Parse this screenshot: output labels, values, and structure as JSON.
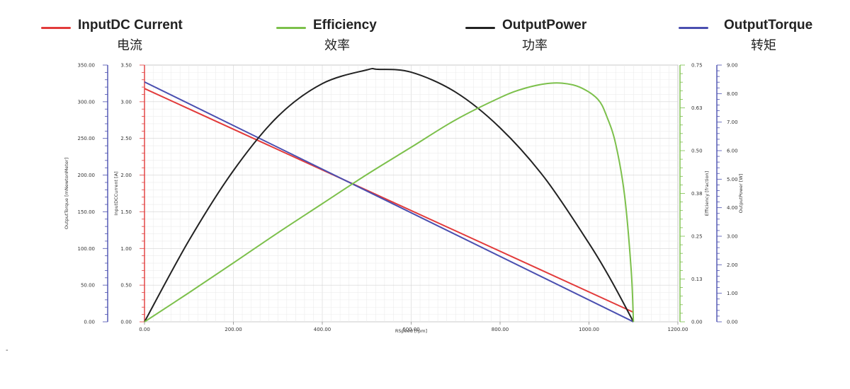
{
  "legend": {
    "input_current": {
      "en": "InputDC Current",
      "zh": "电流",
      "color": "#e23a3a"
    },
    "efficiency": {
      "en": "Efficiency",
      "zh": "效率",
      "color": "#7cc04b"
    },
    "output_power": {
      "en": "OutputPower",
      "zh": "功率",
      "color": "#222222"
    },
    "output_torque": {
      "en": "OutputTorque",
      "zh": "转矩",
      "color": "#4a4fb0"
    }
  },
  "chart_data": {
    "type": "line",
    "xlabel": "RSpeed [rpm]",
    "xlim": [
      0,
      1200
    ],
    "x_ticks": [
      "0.00",
      "200.00",
      "400.00",
      "600.00",
      "800.00",
      "1000.00",
      "1200.00"
    ],
    "grid": true,
    "axes": {
      "torque": {
        "label": "OutputTorque [mNewtonMeter]",
        "ylim": [
          0,
          350
        ],
        "ticks": [
          "0.00",
          "50.00",
          "100.00",
          "150.00",
          "200.00",
          "250.00",
          "300.00",
          "350.00"
        ],
        "color": "#4a4fb0"
      },
      "current": {
        "label": "InputDCCurrent [A]",
        "ylim": [
          0,
          3.5
        ],
        "ticks": [
          "0.00",
          "0.50",
          "1.00",
          "1.50",
          "2.00",
          "2.50",
          "3.00",
          "3.50"
        ],
        "color": "#e23a3a"
      },
      "efficiency": {
        "label": "Efficiency [fraction]",
        "ylim": [
          0,
          0.75
        ],
        "ticks": [
          "0.00",
          "0.13",
          "0.25",
          "0.38",
          "0.50",
          "0.63",
          "0.75"
        ],
        "color": "#7cc04b"
      },
      "power": {
        "label": "OutputPower [W]",
        "ylim": [
          0,
          9
        ],
        "ticks": [
          "0.00",
          "1.00",
          "2.00",
          "3.00",
          "4.00",
          "5.00",
          "6.00",
          "7.00",
          "8.00",
          "9.00"
        ],
        "color": "#4a4fb0"
      }
    },
    "series": [
      {
        "name": "InputDC Current",
        "axis": "current",
        "color": "#e23a3a",
        "x": [
          0,
          1100
        ],
        "y": [
          3.18,
          0.13
        ]
      },
      {
        "name": "OutputTorque",
        "axis": "torque",
        "color": "#4a4fb0",
        "x": [
          0,
          1100
        ],
        "y": [
          327,
          0
        ]
      },
      {
        "name": "OutputPower",
        "axis": "power",
        "color": "#222222",
        "x": [
          0,
          100,
          200,
          300,
          400,
          500,
          525,
          600,
          700,
          800,
          900,
          1000,
          1050,
          1100
        ],
        "y": [
          0,
          2.85,
          5.3,
          7.2,
          8.35,
          8.83,
          8.85,
          8.75,
          8.05,
          6.8,
          5.05,
          2.75,
          1.45,
          0
        ]
      },
      {
        "name": "Efficiency",
        "axis": "efficiency",
        "color": "#7cc04b",
        "x": [
          0,
          100,
          200,
          300,
          400,
          500,
          600,
          700,
          800,
          850,
          900,
          940,
          980,
          1020,
          1040,
          1060,
          1080,
          1095,
          1100
        ],
        "y": [
          0,
          0.085,
          0.172,
          0.26,
          0.345,
          0.43,
          0.51,
          0.59,
          0.655,
          0.68,
          0.695,
          0.697,
          0.685,
          0.65,
          0.6,
          0.52,
          0.37,
          0.15,
          0
        ]
      }
    ]
  },
  "misc": {
    "dash": "-"
  }
}
